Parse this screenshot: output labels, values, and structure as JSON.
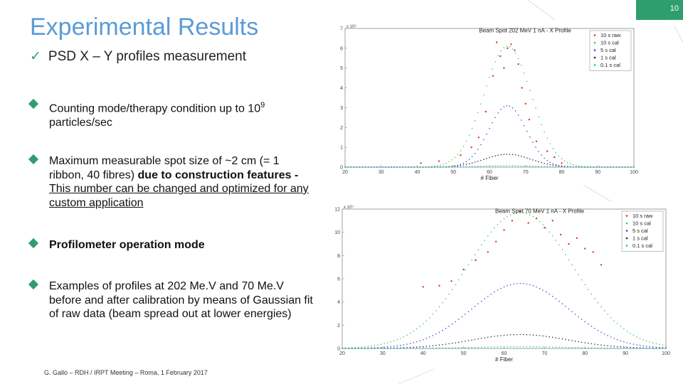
{
  "slide": {
    "number": "10",
    "title": "Experimental Results",
    "subtitle": "PSD X – Y profiles measurement",
    "subtitle_icon": "check-icon",
    "accent_color": "#2f9e6e",
    "title_color": "#5b9bd5",
    "footer": "G. Gallo – RDH / IRPT  Meeting – Roma, 1 February 2017"
  },
  "bullets": [
    {
      "text_a": "Counting mode/therapy condition up to 10",
      "sup": "9",
      "text_b": " particles/sec"
    },
    {
      "text_a": "Maximum measurable spot size of ~2 cm (= 1 ribbon, 40 fibres) ",
      "bold": "due to construction features",
      "text_b": " -",
      "underlined": "This number can be changed and optimized for any custom application"
    },
    {
      "bold": "Profilometer operation mode"
    },
    {
      "text_a": "Examples of profiles at 202 Me.V and 70 Me.V before and after calibration by means of Gaussian fit of raw data (beam spread out at lower energies)"
    }
  ],
  "chart_data": [
    {
      "type": "scatter",
      "title": "Beam Spot 202 MeV 1 nA - X Profile",
      "xlabel": "# Fiber",
      "ylabel": "",
      "y_exponent": "x 10⁶",
      "xlim": [
        20,
        100
      ],
      "ylim": [
        0,
        7
      ],
      "xticks": [
        20,
        30,
        40,
        50,
        60,
        70,
        80,
        90,
        100
      ],
      "yticks": [
        0,
        1,
        2,
        3,
        4,
        5,
        6,
        7
      ],
      "grid": false,
      "legend_position": "top-right",
      "series": [
        {
          "name": "10 s raw",
          "style": "dots",
          "color": "#d9303a",
          "x": [
            41,
            46,
            52,
            55,
            57,
            59,
            61,
            62,
            63,
            64,
            65,
            66,
            67,
            68,
            69,
            70,
            71,
            73,
            76,
            78,
            80
          ],
          "y": [
            0.2,
            0.3,
            0.6,
            1.0,
            1.5,
            2.8,
            4.6,
            6.3,
            5.6,
            5.0,
            6.0,
            6.2,
            5.9,
            5.2,
            4.0,
            3.2,
            2.4,
            1.3,
            0.8,
            0.5,
            0.2
          ]
        },
        {
          "name": "10 s cal",
          "style": "dotted-curve",
          "color": "#2ecc40",
          "peak": 6.1,
          "center": 65,
          "sigma": 6.5
        },
        {
          "name": "5 s cal",
          "style": "dotted-curve",
          "color": "#3b3bd6",
          "peak": 3.1,
          "center": 65,
          "sigma": 5.2
        },
        {
          "name": "1 s cal",
          "style": "dotted-curve",
          "color": "#222222",
          "peak": 0.65,
          "center": 65,
          "sigma": 6.5
        },
        {
          "name": "0.1 s cal",
          "style": "dotted-curve",
          "color": "#17becf",
          "peak": 0.07,
          "center": 65,
          "sigma": 7
        }
      ]
    },
    {
      "type": "scatter",
      "title": "Beam Spot 70 MeV 1 nA - X Profile",
      "xlabel": "# Fiber",
      "ylabel": "",
      "y_exponent": "x 10⁵",
      "xlim": [
        20,
        100
      ],
      "ylim": [
        0,
        12
      ],
      "xticks": [
        20,
        30,
        40,
        50,
        60,
        70,
        80,
        90,
        100
      ],
      "yticks": [
        0,
        2,
        4,
        6,
        8,
        10,
        12
      ],
      "grid": false,
      "legend_position": "top-right",
      "series": [
        {
          "name": "10 s raw",
          "style": "dots",
          "color": "#d9303a",
          "x": [
            40,
            44,
            47,
            50,
            53,
            56,
            58,
            60,
            62,
            64,
            66,
            68,
            70,
            72,
            74,
            76,
            78,
            80,
            82,
            84
          ],
          "y": [
            5.3,
            5.4,
            5.8,
            6.8,
            7.6,
            8.3,
            9.2,
            10.2,
            11.0,
            11.8,
            10.8,
            11.2,
            10.4,
            11.0,
            9.8,
            9.0,
            9.5,
            8.6,
            8.3,
            7.2
          ]
        },
        {
          "name": "10 s cal",
          "style": "dotted-curve",
          "color": "#2ecc40",
          "peak": 11.7,
          "center": 64,
          "sigma": 13
        },
        {
          "name": "5 s cal",
          "style": "dotted-curve",
          "color": "#3b3bd6",
          "peak": 5.6,
          "center": 64,
          "sigma": 12
        },
        {
          "name": "1 s cal",
          "style": "dotted-curve",
          "color": "#222222",
          "peak": 1.2,
          "center": 64,
          "sigma": 12
        },
        {
          "name": "0.1 s cal",
          "style": "dotted-curve",
          "color": "#17becf",
          "peak": 0.15,
          "center": 64,
          "sigma": 12
        }
      ]
    }
  ]
}
